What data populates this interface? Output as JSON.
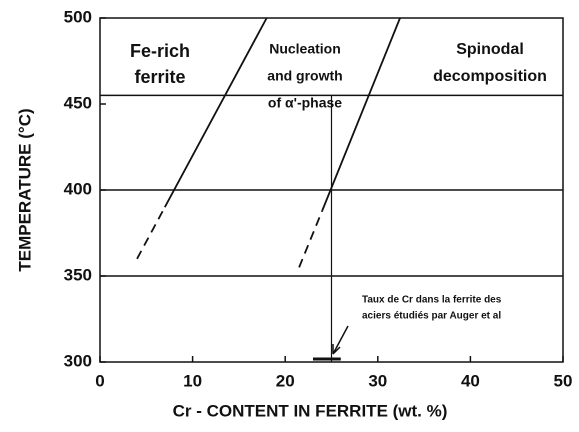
{
  "chart_data": {
    "type": "line",
    "xlabel": "Cr - CONTENT IN FERRITE (wt. %)",
    "ylabel": "TEMPERATURE (°C)",
    "xlim": [
      0,
      50
    ],
    "xticks": [
      0,
      10,
      20,
      30,
      40,
      50
    ],
    "ylim": [
      300,
      500
    ],
    "yticks": [
      300,
      350,
      400,
      450,
      500
    ],
    "hlines": [
      350,
      400,
      455
    ],
    "vline": {
      "x": 25,
      "y_from": 300,
      "y_to": 455
    },
    "measured_range": [
      23,
      26
    ],
    "color": "#111111",
    "series": [
      {
        "x": [
          4,
          7
        ],
        "values": [
          360,
          390
        ],
        "dashed": true
      },
      {
        "x": [
          7,
          18
        ],
        "values": [
          390,
          500
        ],
        "dashed": false
      },
      {
        "x": [
          21.5,
          24
        ],
        "values": [
          355,
          388
        ],
        "dashed": true
      },
      {
        "x": [
          24,
          32.4
        ],
        "values": [
          388,
          500
        ],
        "dashed": false
      }
    ],
    "annotations": [
      {
        "lines": [
          "Fe-rich",
          "ferrite"
        ]
      },
      {
        "lines": [
          "Nucleation",
          "and growth",
          "of α'-phase"
        ]
      },
      {
        "lines": [
          "Spinodal",
          "decomposition"
        ]
      },
      {
        "lines": [
          "Taux de Cr dans la ferrite des",
          "aciers étudiés par Auger et al"
        ]
      }
    ]
  }
}
